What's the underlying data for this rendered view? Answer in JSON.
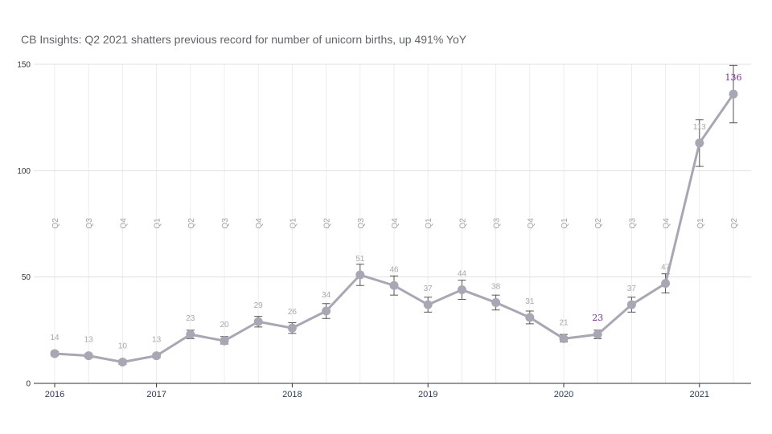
{
  "chart_data": {
    "type": "line",
    "title": "CB Insights: Q2 2021 shatters previous record for number of unicorn births, up 491% YoY",
    "xlabel": "",
    "ylabel": "",
    "ylim": [
      0,
      150
    ],
    "yticks": [
      "0",
      "50",
      "100",
      "150"
    ],
    "year_labels": [
      "2016",
      "2017",
      "2018",
      "2019",
      "2020",
      "2021"
    ],
    "categories": [
      "Q2",
      "Q3",
      "Q4",
      "Q1",
      "Q2",
      "Q3",
      "Q4",
      "Q1",
      "Q2",
      "Q3",
      "Q4",
      "Q1",
      "Q2",
      "Q3",
      "Q4",
      "Q1",
      "Q2",
      "Q3",
      "Q4",
      "Q1",
      "Q2"
    ],
    "values": [
      14,
      13,
      10,
      13,
      23,
      20,
      29,
      26,
      34,
      51,
      46,
      37,
      44,
      38,
      31,
      21,
      23,
      37,
      47,
      113,
      136
    ],
    "error_bars": [
      [
        13,
        15
      ],
      [
        12,
        14
      ],
      [
        9,
        11
      ],
      [
        12,
        14
      ],
      [
        21,
        25
      ],
      [
        18.5,
        22
      ],
      [
        26.5,
        31.5
      ],
      [
        23.5,
        28.5
      ],
      [
        30.5,
        37.5
      ],
      [
        46,
        56
      ],
      [
        41.5,
        50.5
      ],
      [
        33.5,
        40.5
      ],
      [
        39.5,
        48.5
      ],
      [
        34.5,
        41.5
      ],
      [
        28,
        34
      ],
      [
        19.5,
        23
      ],
      [
        21,
        25
      ],
      [
        33.5,
        40.5
      ],
      [
        42.5,
        51.5
      ],
      [
        102,
        124
      ],
      [
        122.5,
        149.5
      ]
    ],
    "highlighted_points": [
      16,
      20
    ],
    "grid": true,
    "colors": {
      "line": "#a9a7b4",
      "marker": "#a9a7b4",
      "error_bar": "#555555",
      "grid": "#e0e0e0",
      "highlight_label": "#7b2d8e",
      "label": "#a8a8a8"
    }
  }
}
